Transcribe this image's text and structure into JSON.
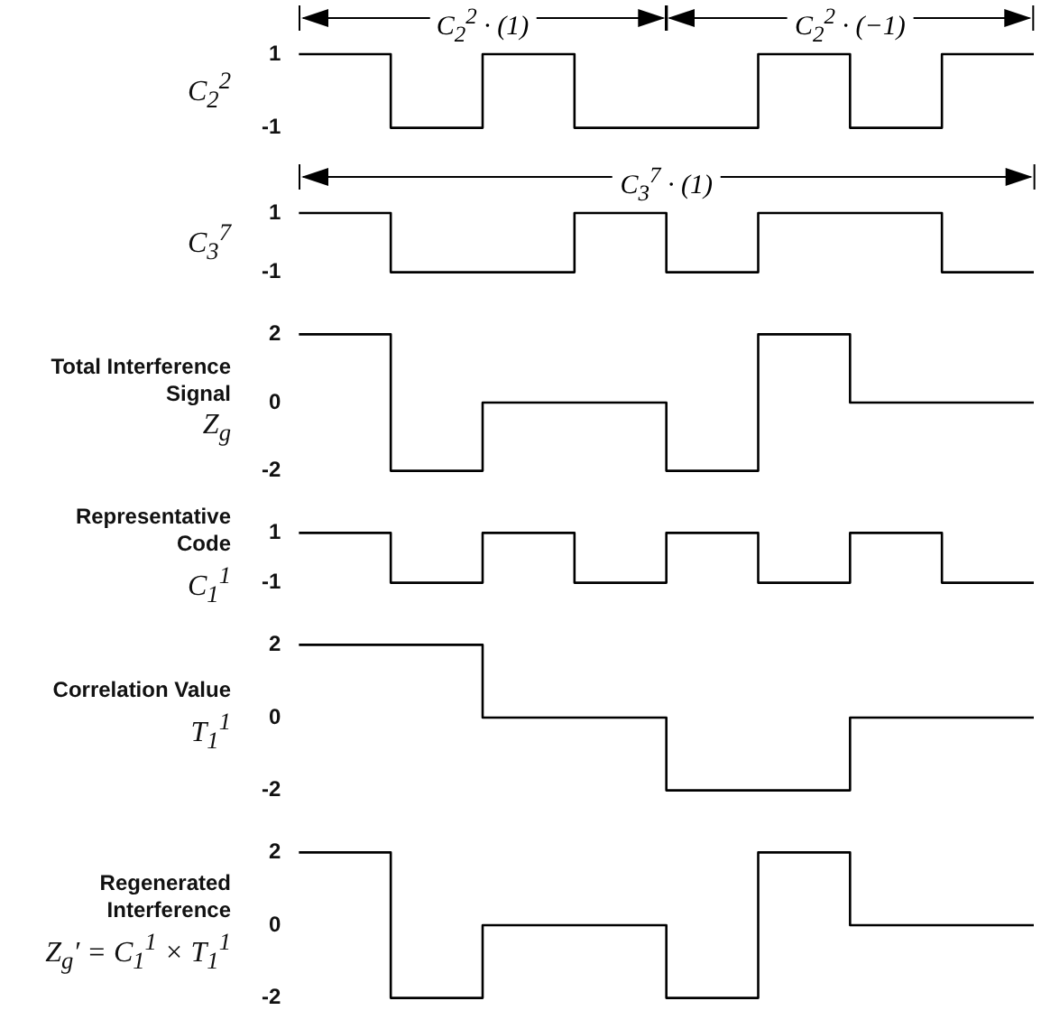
{
  "chart_data": [
    {
      "type": "step",
      "ylabel": "C$_{2}$$^{2}$",
      "annotations": [
        "C$_{2}$$^{2}$ · (1)",
        "C$_{2}$$^{2}$ · (−1)"
      ],
      "categories": [
        null,
        null,
        null,
        null,
        null,
        null,
        null,
        null,
        null
      ],
      "values": [
        1,
        -1,
        1,
        -1,
        -1,
        1,
        -1,
        1,
        1
      ],
      "color": "#000000",
      "ylim": [
        -1,
        1
      ],
      "yticks": [
        -1,
        1
      ],
      "tick_labels": "y",
      "grid": false
    },
    {
      "type": "step",
      "ylabel": "C$_{3}$$^{7}$",
      "annotations": [
        "C$_{3}$$^{7}$ · (1)"
      ],
      "categories": [
        null,
        null,
        null,
        null,
        null,
        null,
        null,
        null,
        null
      ],
      "values": [
        1,
        -1,
        -1,
        1,
        -1,
        1,
        1,
        -1,
        -1
      ],
      "color": "#000000",
      "ylim": [
        -1,
        1
      ],
      "yticks": [
        -1,
        1
      ],
      "tick_labels": "y",
      "grid": false
    },
    {
      "type": "step",
      "ylabel": "Total Interference\nSignal\nZ$_{g}$",
      "categories": [
        null,
        null,
        null,
        null,
        null,
        null,
        null,
        null,
        null
      ],
      "values": [
        2,
        -2,
        0,
        0,
        -2,
        2,
        0,
        0,
        0
      ],
      "color": "#000000",
      "ylim": [
        -2,
        2
      ],
      "yticks": [
        -2,
        0,
        2
      ],
      "tick_labels": "y",
      "grid": false
    },
    {
      "type": "step",
      "ylabel": "Representative\nCode\nC$_{1}$$^{1}$",
      "categories": [
        null,
        null,
        null,
        null,
        null,
        null,
        null,
        null,
        null
      ],
      "values": [
        1,
        -1,
        1,
        -1,
        1,
        -1,
        1,
        -1,
        -1
      ],
      "color": "#000000",
      "ylim": [
        -1,
        1
      ],
      "yticks": [
        -1,
        1
      ],
      "tick_labels": "y",
      "grid": false
    },
    {
      "type": "step",
      "ylabel": "Correlation Value\nT$_{1}$$^{1}$",
      "categories": [
        null,
        null,
        null,
        null,
        null,
        null,
        null,
        null,
        null
      ],
      "values": [
        2,
        2,
        0,
        0,
        -2,
        -2,
        0,
        0,
        0
      ],
      "color": "#000000",
      "ylim": [
        -2,
        2
      ],
      "yticks": [
        -2,
        0,
        2
      ],
      "tick_labels": "y",
      "grid": false
    },
    {
      "type": "step",
      "ylabel": "Regenerated\nInterference\nZ$_{g}$′ = C$_{1}$$^{1}$ × T$_{1}$$^{1}$",
      "categories": [
        null,
        null,
        null,
        null,
        null,
        null,
        null,
        null,
        null
      ],
      "values": [
        2,
        -2,
        0,
        0,
        -2,
        2,
        0,
        0,
        0
      ],
      "color": "#000000",
      "ylim": [
        -2,
        2
      ],
      "yticks": [
        -2,
        0,
        2
      ],
      "tick_labels": "y",
      "grid": false
    }
  ]
}
